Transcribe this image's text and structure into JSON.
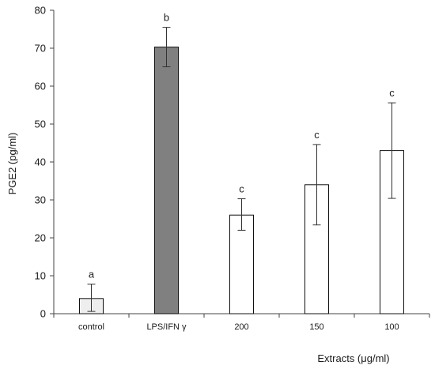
{
  "chart_data": {
    "type": "bar",
    "title": "",
    "ylabel": "PGE2 (pg/ml)",
    "xlabel": "Extracts (μg/ml)",
    "ylim": [
      0,
      80
    ],
    "yticks": [
      0,
      10,
      20,
      30,
      40,
      50,
      60,
      70,
      80
    ],
    "categories": [
      "control",
      "LPS/IFN γ",
      "200",
      "150",
      "100"
    ],
    "values": [
      4,
      70.3,
      26,
      34,
      43
    ],
    "error_plus": [
      3.8,
      5.2,
      4.3,
      10.6,
      12.6
    ],
    "error_minus": [
      3.4,
      5.2,
      4.0,
      10.6,
      12.6
    ],
    "significance_letters": [
      "a",
      "b",
      "c",
      "c",
      "c"
    ],
    "bar_fill_colors": [
      "#eeeeee",
      "#808080",
      "#ffffff",
      "#ffffff",
      "#ffffff"
    ],
    "grid": false,
    "legend": "none"
  }
}
